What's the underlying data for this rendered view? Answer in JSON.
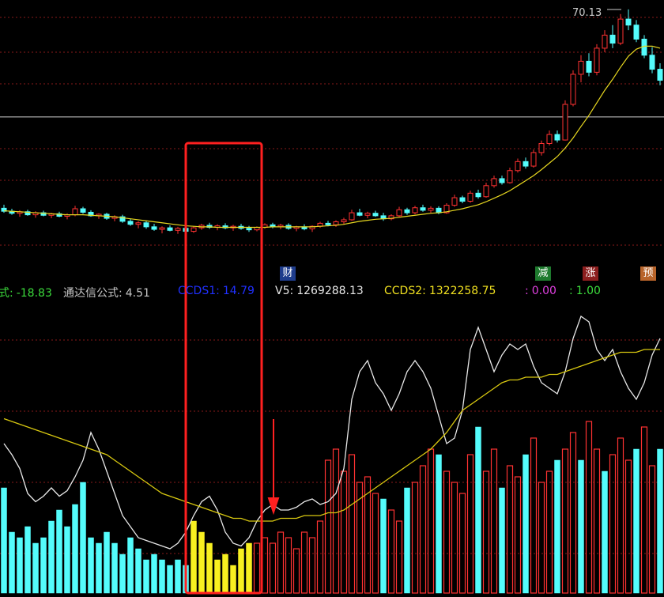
{
  "readout": [
    {
      "label": "式:",
      "value": "-18.83",
      "color": "#3cdc3c"
    },
    {
      "label": "通达信公式:",
      "value": "4.51",
      "color": "#c8c8c8"
    },
    {
      "label": "CCDS1:",
      "value": "14.79",
      "color": "#2030ff"
    },
    {
      "label": "V5:",
      "value": "1269288.13",
      "color": "#e8e8e8"
    },
    {
      "label": "CCDS2:",
      "value": "1322258.75",
      "color": "#f0e020"
    },
    {
      "label": ":",
      "value": "0.00",
      "color": "#e040e0"
    },
    {
      "label": ":",
      "value": "1.00",
      "color": "#3cdc3c"
    }
  ],
  "markers": [
    {
      "text": "财",
      "color": "#1e3c8c"
    },
    {
      "text": "减",
      "color": "#1e7a2e"
    },
    {
      "text": "涨",
      "color": "#8c1e1e"
    },
    {
      "text": "预",
      "color": "#b8642a"
    }
  ],
  "chart_data": [
    {
      "type": "candlestick",
      "ylim": [
        20,
        72
      ],
      "level": 48.7,
      "color_up": "#ff3232",
      "color_down": "#54fcfc",
      "candles": [
        [
          30.5,
          31.2,
          29.6,
          29.9
        ],
        [
          29.9,
          30.4,
          29.2,
          29.5
        ],
        [
          29.5,
          30.1,
          28.8,
          29.8
        ],
        [
          29.8,
          30.2,
          29.0,
          29.2
        ],
        [
          29.2,
          29.9,
          28.6,
          29.6
        ],
        [
          29.6,
          30.0,
          28.9,
          29.1
        ],
        [
          29.1,
          29.6,
          28.5,
          29.4
        ],
        [
          29.4,
          29.8,
          28.7,
          28.9
        ],
        [
          28.9,
          29.5,
          28.3,
          29.2
        ],
        [
          29.2,
          31.0,
          28.9,
          30.4
        ],
        [
          30.4,
          30.8,
          29.4,
          29.7
        ],
        [
          29.7,
          30.1,
          28.8,
          29.0
        ],
        [
          29.0,
          29.5,
          28.4,
          29.3
        ],
        [
          29.3,
          29.6,
          28.2,
          28.5
        ],
        [
          28.5,
          29.1,
          27.9,
          28.8
        ],
        [
          28.8,
          29.2,
          27.6,
          27.9
        ],
        [
          27.9,
          28.4,
          27.0,
          27.3
        ],
        [
          27.3,
          27.9,
          26.5,
          27.6
        ],
        [
          27.6,
          28.0,
          26.4,
          26.8
        ],
        [
          26.8,
          27.4,
          26.0,
          26.3
        ],
        [
          26.3,
          26.9,
          25.5,
          26.6
        ],
        [
          26.6,
          27.1,
          25.9,
          26.1
        ],
        [
          26.1,
          26.8,
          25.4,
          26.5
        ],
        [
          26.5,
          27.0,
          25.7,
          25.9
        ],
        [
          25.9,
          26.9,
          25.6,
          26.6
        ],
        [
          26.6,
          27.4,
          26.2,
          27.1
        ],
        [
          27.1,
          27.6,
          26.4,
          26.7
        ],
        [
          26.7,
          27.3,
          26.1,
          27.0
        ],
        [
          27.0,
          27.5,
          26.3,
          26.6
        ],
        [
          26.6,
          27.2,
          26.0,
          26.9
        ],
        [
          26.9,
          27.4,
          26.2,
          26.5
        ],
        [
          26.5,
          27.0,
          25.8,
          26.2
        ],
        [
          26.2,
          26.9,
          25.9,
          26.7
        ],
        [
          26.7,
          27.5,
          26.4,
          27.2
        ],
        [
          27.2,
          27.6,
          26.5,
          26.8
        ],
        [
          26.8,
          27.4,
          26.3,
          27.1
        ],
        [
          27.1,
          27.5,
          26.2,
          26.5
        ],
        [
          26.5,
          27.0,
          25.9,
          26.8
        ],
        [
          26.8,
          27.3,
          26.1,
          26.4
        ],
        [
          26.4,
          27.1,
          25.8,
          26.9
        ],
        [
          26.9,
          27.8,
          26.6,
          27.5
        ],
        [
          27.5,
          28.0,
          26.9,
          27.2
        ],
        [
          27.2,
          28.1,
          26.8,
          27.8
        ],
        [
          27.8,
          28.6,
          27.3,
          28.2
        ],
        [
          28.2,
          30.2,
          28.0,
          29.6
        ],
        [
          29.6,
          30.4,
          28.9,
          29.1
        ],
        [
          29.1,
          29.8,
          28.5,
          29.5
        ],
        [
          29.5,
          30.0,
          28.8,
          29.0
        ],
        [
          29.0,
          29.6,
          28.0,
          28.4
        ],
        [
          28.4,
          29.3,
          28.1,
          29.0
        ],
        [
          29.0,
          30.8,
          28.7,
          30.2
        ],
        [
          30.2,
          30.6,
          29.2,
          29.6
        ],
        [
          29.6,
          31.0,
          29.3,
          30.6
        ],
        [
          30.6,
          31.2,
          29.8,
          30.1
        ],
        [
          30.1,
          30.9,
          29.6,
          30.5
        ],
        [
          30.5,
          30.9,
          29.3,
          29.6
        ],
        [
          29.6,
          31.5,
          29.4,
          31.1
        ],
        [
          31.1,
          33.2,
          30.8,
          32.6
        ],
        [
          32.6,
          33.0,
          31.5,
          31.9
        ],
        [
          31.9,
          34.0,
          31.6,
          33.5
        ],
        [
          33.5,
          34.2,
          32.4,
          32.8
        ],
        [
          32.8,
          35.6,
          32.6,
          35.0
        ],
        [
          35.0,
          37.0,
          34.6,
          36.4
        ],
        [
          36.4,
          37.0,
          35.2,
          35.6
        ],
        [
          35.6,
          38.6,
          35.4,
          38.0
        ],
        [
          38.0,
          40.4,
          37.6,
          39.8
        ],
        [
          39.8,
          40.6,
          38.4,
          38.9
        ],
        [
          38.9,
          42.2,
          38.6,
          41.6
        ],
        [
          41.6,
          44.0,
          41.0,
          43.4
        ],
        [
          43.4,
          46.0,
          43.0,
          45.2
        ],
        [
          45.2,
          46.0,
          43.6,
          44.1
        ],
        [
          44.1,
          52.0,
          44.0,
          51.2
        ],
        [
          51.2,
          58.0,
          50.8,
          57.2
        ],
        [
          57.2,
          61.0,
          55.6,
          59.8
        ],
        [
          59.8,
          61.4,
          56.8,
          57.6
        ],
        [
          57.6,
          63.2,
          57.0,
          62.4
        ],
        [
          62.4,
          66.0,
          61.6,
          65.0
        ],
        [
          65.0,
          67.0,
          62.4,
          63.4
        ],
        [
          63.4,
          69.2,
          63.0,
          68.2
        ],
        [
          68.2,
          70.13,
          66.0,
          67.0
        ],
        [
          67.0,
          68.0,
          63.6,
          64.2
        ],
        [
          64.2,
          65.0,
          60.4,
          61.0
        ],
        [
          61.0,
          62.6,
          57.4,
          58.2
        ],
        [
          58.2,
          59.4,
          55.0,
          56.0
        ]
      ],
      "series": [
        {
          "color": "#e8d820",
          "values": [
            30,
            29.9,
            29.8,
            29.7,
            29.6,
            29.5,
            29.4,
            29.3,
            29.2,
            29.2,
            29.2,
            29.1,
            29.0,
            28.9,
            28.8,
            28.6,
            28.4,
            28.2,
            28.0,
            27.8,
            27.6,
            27.4,
            27.2,
            27.0,
            26.9,
            26.8,
            26.8,
            26.7,
            26.7,
            26.7,
            26.7,
            26.7,
            26.7,
            26.7,
            26.8,
            26.8,
            26.8,
            26.8,
            26.8,
            26.8,
            26.9,
            27.0,
            27.1,
            27.3,
            27.6,
            27.9,
            28.1,
            28.3,
            28.4,
            28.5,
            28.7,
            28.9,
            29.1,
            29.3,
            29.5,
            29.6,
            29.8,
            30.1,
            30.4,
            30.8,
            31.2,
            31.8,
            32.5,
            33.2,
            34.0,
            35.0,
            36.0,
            37.0,
            38.2,
            39.5,
            40.8,
            42.5,
            44.5,
            46.8,
            49.0,
            51.5,
            54.0,
            56.2,
            58.6,
            60.8,
            62.2,
            62.8,
            62.8,
            62.4
          ]
        }
      ]
    },
    {
      "type": "bar",
      "ylim": [
        0,
        105
      ],
      "series": [
        {
          "color": "#ff3232",
          "hollow": true,
          "values": [
            null,
            null,
            null,
            null,
            null,
            null,
            null,
            null,
            null,
            null,
            null,
            null,
            null,
            null,
            null,
            null,
            null,
            null,
            null,
            null,
            null,
            null,
            null,
            null,
            null,
            null,
            null,
            null,
            null,
            null,
            null,
            null,
            18,
            20,
            18,
            22,
            20,
            16,
            22,
            20,
            26,
            48,
            52,
            44,
            50,
            40,
            42,
            36,
            null,
            30,
            26,
            null,
            40,
            46,
            52,
            null,
            44,
            40,
            36,
            50,
            null,
            44,
            52,
            null,
            46,
            42,
            null,
            56,
            40,
            44,
            null,
            52,
            58,
            null,
            62,
            52,
            null,
            50,
            56,
            48,
            null,
            60,
            46,
            null
          ]
        },
        {
          "color": "#54fcfc",
          "hollow": false,
          "values": [
            38,
            22,
            20,
            24,
            18,
            20,
            26,
            30,
            24,
            32,
            40,
            20,
            18,
            22,
            18,
            14,
            20,
            16,
            12,
            14,
            12,
            10,
            12,
            10,
            null,
            null,
            null,
            null,
            null,
            null,
            null,
            null,
            null,
            null,
            null,
            null,
            null,
            null,
            null,
            null,
            null,
            null,
            null,
            null,
            null,
            null,
            null,
            null,
            34,
            null,
            null,
            38,
            null,
            null,
            null,
            50,
            null,
            null,
            null,
            null,
            60,
            null,
            null,
            38,
            null,
            null,
            50,
            null,
            null,
            null,
            48,
            null,
            null,
            48,
            null,
            null,
            44,
            null,
            null,
            null,
            52,
            null,
            null,
            52
          ]
        },
        {
          "color": "#f8f020",
          "hollow": false,
          "values": [
            null,
            null,
            null,
            null,
            null,
            null,
            null,
            null,
            null,
            null,
            null,
            null,
            null,
            null,
            null,
            null,
            null,
            null,
            null,
            null,
            null,
            null,
            null,
            null,
            26,
            22,
            18,
            12,
            14,
            10,
            16,
            18,
            null,
            null,
            null,
            null,
            null,
            null,
            null,
            null,
            null,
            null,
            null,
            null,
            null,
            null,
            null,
            null,
            null,
            null,
            null,
            null,
            null,
            null,
            null,
            null,
            null,
            null,
            null,
            null,
            null,
            null,
            null,
            null,
            null,
            null,
            null,
            null,
            null,
            null,
            null,
            null,
            null,
            null,
            null,
            null,
            null,
            null,
            null,
            null,
            null,
            null,
            null,
            null
          ]
        }
      ],
      "lines": [
        {
          "color": "#e8e8e8",
          "values": [
            54,
            50,
            45,
            36,
            33,
            35,
            38,
            35,
            37,
            42,
            48,
            58,
            52,
            44,
            36,
            28,
            24,
            20,
            19,
            18,
            17,
            16,
            18,
            22,
            28,
            33,
            35,
            30,
            22,
            18,
            17,
            20,
            26,
            30,
            32,
            30,
            30,
            31,
            33,
            34,
            32,
            33,
            36,
            45,
            70,
            80,
            84,
            76,
            72,
            66,
            72,
            80,
            84,
            80,
            74,
            64,
            54,
            56,
            66,
            88,
            96,
            88,
            80,
            86,
            90,
            88,
            90,
            82,
            76,
            74,
            72,
            80,
            92,
            100,
            98,
            88,
            84,
            88,
            80,
            74,
            70,
            76,
            86,
            92
          ]
        },
        {
          "color": "#d8c810",
          "values": [
            63,
            62,
            61,
            60,
            59,
            58,
            57,
            56,
            55,
            54,
            53,
            52,
            51,
            50,
            48,
            46,
            44,
            42,
            40,
            38,
            36,
            35,
            34,
            33,
            32,
            31,
            30,
            29,
            28,
            27,
            27,
            26,
            26,
            26,
            26,
            27,
            27,
            27,
            28,
            28,
            28,
            29,
            29,
            30,
            32,
            34,
            36,
            38,
            40,
            42,
            44,
            46,
            48,
            50,
            52,
            55,
            58,
            62,
            66,
            68,
            70,
            72,
            74,
            76,
            77,
            77,
            78,
            78,
            78,
            79,
            79,
            80,
            81,
            82,
            83,
            84,
            85,
            86,
            87,
            87,
            87,
            88,
            88,
            88
          ]
        }
      ]
    }
  ]
}
